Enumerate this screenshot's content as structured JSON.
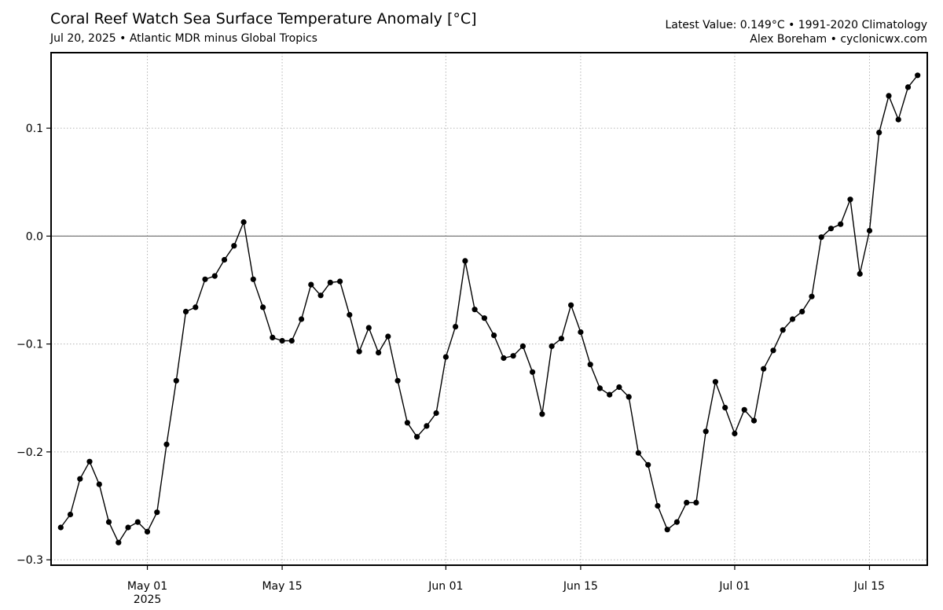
{
  "header": {
    "title": "Coral Reef Watch Sea Surface Temperature Anomaly [°C]",
    "subtitle": "Jul 20, 2025 • Atlantic MDR minus Global Tropics",
    "right_line1": "Latest Value: 0.149°C • 1991-2020 Climatology",
    "right_line2": "Alex Boreham • cyclonicwx.com"
  },
  "chart_data": {
    "type": "line",
    "title": "Coral Reef Watch Sea Surface Temperature Anomaly [°C]",
    "subtitle": "Jul 20, 2025 • Atlantic MDR minus Global Tropics",
    "xlabel": "",
    "ylabel": "",
    "x_start": "2025-04-22",
    "x_end": "2025-07-20",
    "xlim": [
      "2025-04-21",
      "2025-07-21"
    ],
    "ylim": [
      -0.305,
      0.17
    ],
    "yticks": [
      -0.3,
      -0.2,
      -0.1,
      0.0,
      0.1
    ],
    "ytick_labels": [
      "−0.3",
      "−0.2",
      "−0.1",
      "0.0",
      "0.1"
    ],
    "xticks": [
      {
        "date": "2025-05-01",
        "label": "May 01",
        "sublabel": "2025"
      },
      {
        "date": "2025-05-15",
        "label": "May 15",
        "sublabel": ""
      },
      {
        "date": "2025-06-01",
        "label": "Jun 01",
        "sublabel": ""
      },
      {
        "date": "2025-06-15",
        "label": "Jun 15",
        "sublabel": ""
      },
      {
        "date": "2025-07-01",
        "label": "Jul 01",
        "sublabel": ""
      },
      {
        "date": "2025-07-15",
        "label": "Jul 15",
        "sublabel": ""
      }
    ],
    "zero_line": 0.0,
    "grid": true,
    "series": [
      {
        "name": "",
        "color": "#000000",
        "values": [
          -0.27,
          -0.258,
          -0.225,
          -0.209,
          -0.23,
          -0.265,
          -0.284,
          -0.27,
          -0.265,
          -0.274,
          -0.256,
          -0.193,
          -0.134,
          -0.07,
          -0.066,
          -0.04,
          -0.037,
          -0.022,
          -0.009,
          0.013,
          -0.04,
          -0.066,
          -0.094,
          -0.097,
          -0.097,
          -0.077,
          -0.045,
          -0.055,
          -0.043,
          -0.042,
          -0.073,
          -0.107,
          -0.085,
          -0.108,
          -0.093,
          -0.134,
          -0.173,
          -0.186,
          -0.176,
          -0.164,
          -0.112,
          -0.084,
          -0.023,
          -0.068,
          -0.076,
          -0.092,
          -0.113,
          -0.111,
          -0.102,
          -0.126,
          -0.165,
          -0.102,
          -0.095,
          -0.064,
          -0.089,
          -0.119,
          -0.141,
          -0.147,
          -0.14,
          -0.149,
          -0.201,
          -0.212,
          -0.25,
          -0.272,
          -0.265,
          -0.247,
          -0.247,
          -0.181,
          -0.135,
          -0.159,
          -0.183,
          -0.161,
          -0.171,
          -0.123,
          -0.106,
          -0.087,
          -0.077,
          -0.07,
          -0.056,
          -0.001,
          0.007,
          0.011,
          0.034,
          -0.035,
          0.005,
          0.096,
          0.13,
          0.108,
          0.138,
          0.149
        ]
      }
    ]
  }
}
